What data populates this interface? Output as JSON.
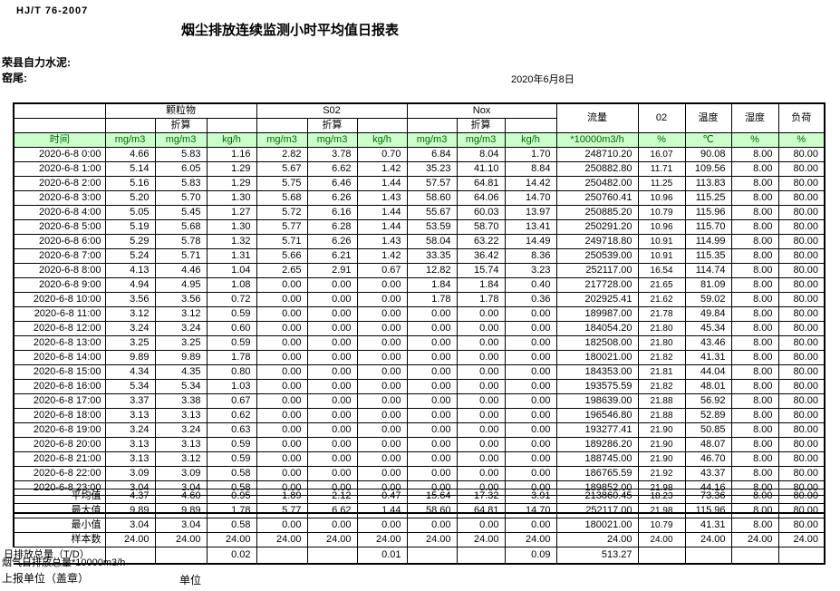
{
  "page": {
    "standard": "HJ/T  76-2007",
    "title": "烟尘排放连续监测小时平均值日报表",
    "company": "荣县自力水泥:",
    "location": "窑尾:",
    "date": "2020年6月8日"
  },
  "table": {
    "time_label": "时间",
    "converted_label": "折算",
    "groups": {
      "pm": "颗粒物",
      "so2": "S02",
      "nox": "Nox",
      "flow": "流量",
      "o2": "02",
      "temp": "温度",
      "humidity": "湿度",
      "load": "负荷"
    },
    "units": [
      "mg/m3",
      "mg/m3",
      "kg/h",
      "mg/m3",
      "mg/m3",
      "kg/h",
      "mg/m3",
      "mg/m3",
      "kg/h",
      "*10000m3/h",
      "%",
      "℃",
      "%",
      "%"
    ],
    "rows": [
      {
        "time": "2020-6-8 0:00",
        "values": [
          "4.66",
          "5.83",
          "1.16",
          "2.82",
          "3.78",
          "0.70",
          "6.84",
          "8.04",
          "1.70",
          "248710.20",
          "16.07",
          "90.08",
          "8.00",
          "80.00"
        ]
      },
      {
        "time": "2020-6-8 1:00",
        "values": [
          "5.14",
          "6.05",
          "1.29",
          "5.67",
          "6.62",
          "1.42",
          "35.23",
          "41.10",
          "8.84",
          "250882.80",
          "11.71",
          "109.56",
          "8.00",
          "80.00"
        ]
      },
      {
        "time": "2020-6-8 2:00",
        "values": [
          "5.16",
          "5.83",
          "1.29",
          "5.75",
          "6.46",
          "1.44",
          "57.57",
          "64.81",
          "14.42",
          "250482.00",
          "11.25",
          "113.83",
          "8.00",
          "80.00"
        ]
      },
      {
        "time": "2020-6-8 3:00",
        "values": [
          "5.20",
          "5.70",
          "1.30",
          "5.68",
          "6.26",
          "1.43",
          "58.60",
          "64.06",
          "14.70",
          "250760.41",
          "10.96",
          "115.25",
          "8.00",
          "80.00"
        ]
      },
      {
        "time": "2020-6-8 4:00",
        "values": [
          "5.05",
          "5.45",
          "1.27",
          "5.72",
          "6.16",
          "1.44",
          "55.67",
          "60.03",
          "13.97",
          "250885.20",
          "10.79",
          "115.96",
          "8.00",
          "80.00"
        ]
      },
      {
        "time": "2020-6-8 5:00",
        "values": [
          "5.19",
          "5.68",
          "1.30",
          "5.77",
          "6.28",
          "1.44",
          "53.59",
          "58.70",
          "13.41",
          "250291.20",
          "10.96",
          "115.70",
          "8.00",
          "80.00"
        ]
      },
      {
        "time": "2020-6-8 6:00",
        "values": [
          "5.29",
          "5.78",
          "1.32",
          "5.71",
          "6.26",
          "1.43",
          "58.04",
          "63.22",
          "14.49",
          "249718.80",
          "10.91",
          "114.99",
          "8.00",
          "80.00"
        ]
      },
      {
        "time": "2020-6-8 7:00",
        "values": [
          "5.24",
          "5.71",
          "1.31",
          "5.66",
          "6.21",
          "1.42",
          "33.35",
          "36.42",
          "8.36",
          "250539.00",
          "10.91",
          "115.35",
          "8.00",
          "80.00"
        ]
      },
      {
        "time": "2020-6-8 8:00",
        "values": [
          "4.13",
          "4.46",
          "1.04",
          "2.65",
          "2.91",
          "0.67",
          "12.82",
          "15.74",
          "3.23",
          "252117.00",
          "16.54",
          "114.74",
          "8.00",
          "80.00"
        ]
      },
      {
        "time": "2020-6-8 9:00",
        "values": [
          "4.94",
          "4.95",
          "1.08",
          "0.00",
          "0.00",
          "0.00",
          "1.84",
          "1.84",
          "0.40",
          "217728.00",
          "21.65",
          "81.09",
          "8.00",
          "80.00"
        ]
      },
      {
        "time": "2020-6-8 10:00",
        "values": [
          "3.56",
          "3.56",
          "0.72",
          "0.00",
          "0.00",
          "0.00",
          "1.78",
          "1.78",
          "0.36",
          "202925.41",
          "21.62",
          "59.02",
          "8.00",
          "80.00"
        ]
      },
      {
        "time": "2020-6-8 11:00",
        "values": [
          "3.12",
          "3.12",
          "0.59",
          "0.00",
          "0.00",
          "0.00",
          "0.00",
          "0.00",
          "0.00",
          "189987.00",
          "21.78",
          "49.84",
          "8.00",
          "80.00"
        ]
      },
      {
        "time": "2020-6-8 12:00",
        "values": [
          "3.24",
          "3.24",
          "0.60",
          "0.00",
          "0.00",
          "0.00",
          "0.00",
          "0.00",
          "0.00",
          "184054.20",
          "21.80",
          "45.34",
          "8.00",
          "80.00"
        ]
      },
      {
        "time": "2020-6-8 13:00",
        "values": [
          "3.25",
          "3.25",
          "0.59",
          "0.00",
          "0.00",
          "0.00",
          "0.00",
          "0.00",
          "0.00",
          "182508.00",
          "21.80",
          "43.46",
          "8.00",
          "80.00"
        ]
      },
      {
        "time": "2020-6-8 14:00",
        "values": [
          "9.89",
          "9.89",
          "1.78",
          "0.00",
          "0.00",
          "0.00",
          "0.00",
          "0.00",
          "0.00",
          "180021.00",
          "21.82",
          "41.31",
          "8.00",
          "80.00"
        ]
      },
      {
        "time": "2020-6-8 15:00",
        "values": [
          "4.34",
          "4.35",
          "0.80",
          "0.00",
          "0.00",
          "0.00",
          "0.00",
          "0.00",
          "0.00",
          "184353.00",
          "21.81",
          "44.04",
          "8.00",
          "80.00"
        ]
      },
      {
        "time": "2020-6-8 16:00",
        "values": [
          "5.34",
          "5.34",
          "1.03",
          "0.00",
          "0.00",
          "0.00",
          "0.00",
          "0.00",
          "0.00",
          "193575.59",
          "21.82",
          "48.01",
          "8.00",
          "80.00"
        ]
      },
      {
        "time": "2020-6-8 17:00",
        "values": [
          "3.37",
          "3.38",
          "0.67",
          "0.00",
          "0.00",
          "0.00",
          "0.00",
          "0.00",
          "0.00",
          "198639.00",
          "21.88",
          "56.92",
          "8.00",
          "80.00"
        ]
      },
      {
        "time": "2020-6-8 18:00",
        "values": [
          "3.13",
          "3.13",
          "0.62",
          "0.00",
          "0.00",
          "0.00",
          "0.00",
          "0.00",
          "0.00",
          "196546.80",
          "21.88",
          "52.89",
          "8.00",
          "80.00"
        ]
      },
      {
        "time": "2020-6-8 19:00",
        "values": [
          "3.24",
          "3.24",
          "0.63",
          "0.00",
          "0.00",
          "0.00",
          "0.00",
          "0.00",
          "0.00",
          "193277.41",
          "21.90",
          "50.85",
          "8.00",
          "80.00"
        ]
      },
      {
        "time": "2020-6-8 20:00",
        "values": [
          "3.13",
          "3.13",
          "0.59",
          "0.00",
          "0.00",
          "0.00",
          "0.00",
          "0.00",
          "0.00",
          "189286.20",
          "21.90",
          "48.07",
          "8.00",
          "80.00"
        ]
      },
      {
        "time": "2020-6-8 21:00",
        "values": [
          "3.13",
          "3.12",
          "0.59",
          "0.00",
          "0.00",
          "0.00",
          "0.00",
          "0.00",
          "0.00",
          "188745.00",
          "21.90",
          "46.70",
          "8.00",
          "80.00"
        ]
      },
      {
        "time": "2020-6-8 22:00",
        "values": [
          "3.09",
          "3.09",
          "0.58",
          "0.00",
          "0.00",
          "0.00",
          "0.00",
          "0.00",
          "0.00",
          "186765.59",
          "21.92",
          "43.37",
          "8.00",
          "80.00"
        ]
      },
      {
        "time": "2020-6-8 23:00",
        "values": [
          "3.04",
          "3.04",
          "0.58",
          "0.00",
          "0.00",
          "0.00",
          "0.00",
          "0.00",
          "0.00",
          "189852.00",
          "21.98",
          "44.16",
          "8.00",
          "80.00"
        ]
      }
    ],
    "summary": [
      {
        "label": "平均值",
        "values": [
          "4.37",
          "4.60",
          "0.95",
          "1.89",
          "2.12",
          "0.47",
          "15.64",
          "17.32",
          "3.91",
          "213860.45",
          "18.23",
          "73.36",
          "8.00",
          "80.00"
        ]
      },
      {
        "label": "最大值",
        "values": [
          "9.89",
          "9.89",
          "1.78",
          "5.77",
          "6.62",
          "1.44",
          "58.60",
          "64.81",
          "14.70",
          "252117.00",
          "21.98",
          "115.96",
          "8.00",
          "80.00"
        ]
      },
      {
        "label": "最小值",
        "values": [
          "3.04",
          "3.04",
          "0.58",
          "0.00",
          "0.00",
          "0.00",
          "0.00",
          "0.00",
          "0.00",
          "180021.00",
          "10.79",
          "41.31",
          "8.00",
          "80.00"
        ]
      },
      {
        "label": "样本数",
        "values": [
          "24.00",
          "24.00",
          "24.00",
          "24.00",
          "24.00",
          "24.00",
          "24.00",
          "24.00",
          "24.00",
          "24.00",
          "24.00",
          "24.00",
          "24.00",
          "24.00"
        ]
      },
      {
        "label": "日排放总量（T/D）",
        "values": [
          "",
          "",
          "0.02",
          "",
          "",
          "0.01",
          "",
          "",
          "0.09",
          "513.27",
          "",
          "",
          "",
          ""
        ]
      }
    ]
  },
  "footer": {
    "flow_total_note": "烟气日排放总量*10000m3/h",
    "report_unit": "上报单位（盖章）",
    "unit": "单位"
  },
  "colors": {
    "header_bg": "#ccffcc",
    "header_text": "#006600",
    "border": "#000000"
  }
}
